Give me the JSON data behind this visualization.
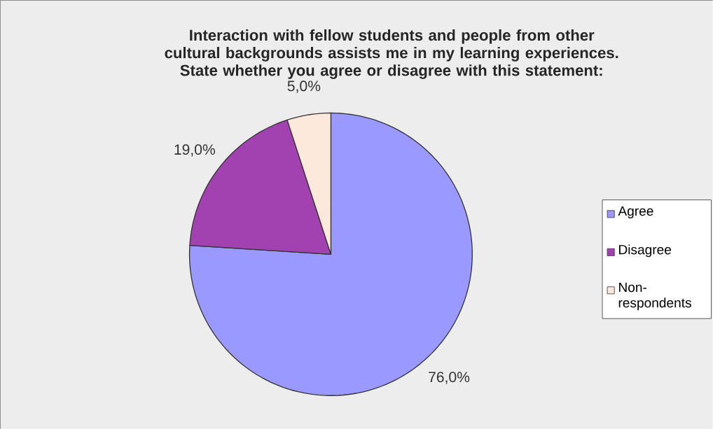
{
  "chart_data": {
    "type": "pie",
    "title": "Interaction with fellow students and people from other cultural backgrounds assists me in my learning experiences. State whether you agree or disagree with this statement:",
    "categories": [
      "Agree",
      "Disagree",
      "Non-respondents"
    ],
    "values": [
      76,
      19,
      5
    ],
    "colors": [
      "#9999ff",
      "#a142b0",
      "#fde9dc"
    ],
    "value_labels": [
      "76,0%",
      "19,0%",
      "5,0%"
    ],
    "legend": "right"
  }
}
